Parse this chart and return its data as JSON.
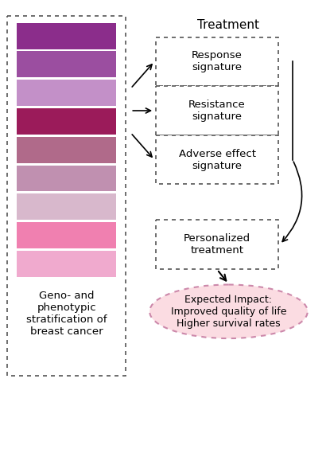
{
  "bar_colors": [
    "#8B2D8B",
    "#9B4EA0",
    "#C390C8",
    "#9B1B5A",
    "#B06A8A",
    "#C090B0",
    "#D8B8CC",
    "#F080B0",
    "#F0AACE"
  ],
  "left_box_label": "Geno- and\nphenotypic\nstratification of\nbreast cancer",
  "treatment_label": "Treatment",
  "sig_boxes": [
    "Response\nsignature",
    "Resistance\nsignature",
    "Adverse effect\nsignature"
  ],
  "personalized_label": "Personalized\ntreatment",
  "impact_label": "Expected Impact:\nImproved quality of life\nHigher survival rates",
  "bg_color": "#FFFFFF",
  "text_color": "#000000",
  "ellipse_fill": "#FBDCE2",
  "ellipse_edge": "#CC88AA",
  "dash_color": "#555555"
}
